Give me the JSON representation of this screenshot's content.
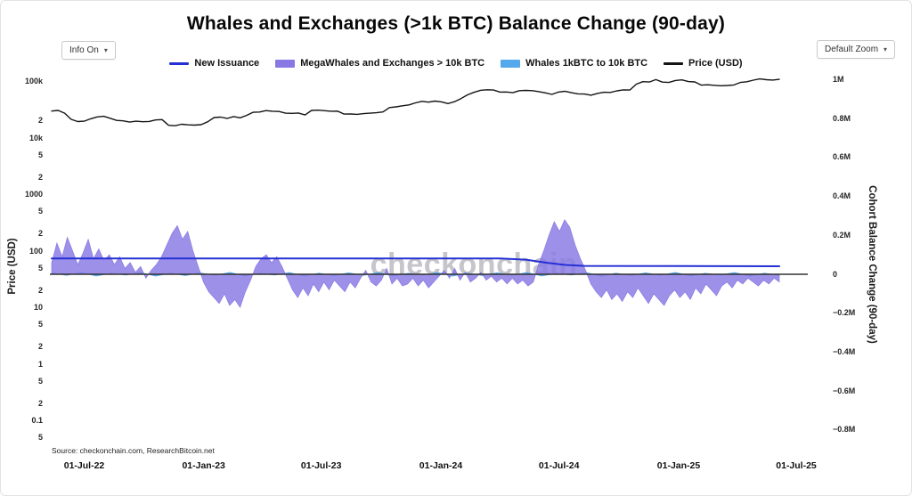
{
  "header": {
    "title": "Whales and Exchanges (>1k BTC) Balance Change (90-day)",
    "info_button": "Info On",
    "zoom_button": "Default Zoom",
    "caret": "▾"
  },
  "watermark": "checkonchain",
  "source_note": "Source: checkonchain.com, ResearchBitcoin.net",
  "legend": [
    {
      "label": "New Issuance",
      "color": "#2530d4",
      "type": "line"
    },
    {
      "label": "MegaWhales and Exchanges > 10k BTC",
      "color": "#8878e4",
      "type": "band"
    },
    {
      "label": "Whales 1kBTC to 10k BTC",
      "color": "#54a8ec",
      "type": "band"
    },
    {
      "label": "Price (USD)",
      "color": "#141414",
      "type": "line"
    }
  ],
  "axes": {
    "left_title": "Price (USD)",
    "right_title": "Cohort Balance Change (90-day)",
    "x_ticks": [
      {
        "label": "01-Jul-22",
        "day": 50
      },
      {
        "label": "01-Jan-23",
        "day": 234
      },
      {
        "label": "01-Jul-23",
        "day": 415
      },
      {
        "label": "01-Jan-24",
        "day": 599
      },
      {
        "label": "01-Jul-24",
        "day": 781
      },
      {
        "label": "01-Jan-25",
        "day": 965
      },
      {
        "label": "01-Jul-25",
        "day": 1146
      }
    ],
    "left_ticks": [
      {
        "label": "100k",
        "value": 100000
      },
      {
        "label": "2",
        "value": 20000
      },
      {
        "label": "10k",
        "value": 10000
      },
      {
        "label": "5",
        "value": 5000
      },
      {
        "label": "2",
        "value": 2000
      },
      {
        "label": "1000",
        "value": 1000
      },
      {
        "label": "5",
        "value": 500
      },
      {
        "label": "2",
        "value": 200
      },
      {
        "label": "100",
        "value": 100
      },
      {
        "label": "5",
        "value": 50
      },
      {
        "label": "2",
        "value": 20
      },
      {
        "label": "10",
        "value": 10
      },
      {
        "label": "5",
        "value": 5
      },
      {
        "label": "2",
        "value": 2
      },
      {
        "label": "1",
        "value": 1
      },
      {
        "label": "5",
        "value": 0.5
      },
      {
        "label": "2",
        "value": 0.2
      },
      {
        "label": "0.1",
        "value": 0.1
      },
      {
        "label": "5",
        "value": 0.05
      }
    ],
    "right_ticks": [
      {
        "label": "1M",
        "value": 1.0
      },
      {
        "label": "0.8M",
        "value": 0.8
      },
      {
        "label": "0.6M",
        "value": 0.6
      },
      {
        "label": "0.4M",
        "value": 0.4
      },
      {
        "label": "0.2M",
        "value": 0.2
      },
      {
        "label": "0",
        "value": 0
      },
      {
        "label": "−0.2M",
        "value": -0.2
      },
      {
        "label": "−0.4M",
        "value": -0.4
      },
      {
        "label": "−0.6M",
        "value": -0.6
      },
      {
        "label": "−0.8M",
        "value": -0.8
      }
    ]
  },
  "chart_data": {
    "type": "line+area",
    "title": "Whales and Exchanges (>1k BTC) Balance Change (90-day)",
    "x_domain_days": [
      0,
      1162
    ],
    "data_span_days": [
      0,
      1120
    ],
    "x_range_dates": [
      "mid-May-2022",
      "early-Jun-2025"
    ],
    "left_axis": {
      "label": "Price (USD)",
      "scale": "log",
      "range": [
        0.04,
        150000
      ]
    },
    "right_axis": {
      "label": "Cohort Balance Change (90-day)",
      "scale": "linear",
      "range_M_BTC": [
        -0.9,
        1.05
      ]
    },
    "series": [
      {
        "id": "whales-1k-10k",
        "name": "Whales 1kBTC to 10k BTC",
        "kind": "area",
        "axis": "right",
        "unit": "M_BTC",
        "color": "#54a8ec",
        "opacity": 0.9,
        "values": [
          0.008,
          -0.006,
          0.01,
          -0.009,
          0.005,
          -0.004,
          0.009,
          -0.01,
          0.006,
          -0.007,
          0.008,
          -0.006,
          0.01,
          -0.009,
          0.005,
          -0.004,
          0.009,
          -0.01,
          0.006,
          -0.007,
          0.008,
          -0.006,
          0.01,
          -0.009,
          0.005,
          -0.004,
          0.009,
          -0.01,
          0.006,
          -0.007,
          0.008,
          -0.006,
          0.01,
          -0.009,
          0.005,
          -0.004,
          0.009,
          -0.01,
          0.006,
          -0.007,
          0.008,
          -0.006,
          0.01,
          -0.009,
          0.005,
          -0.004,
          0.009,
          -0.01,
          0.006,
          -0.007
        ]
      },
      {
        "id": "megawhales-exchanges",
        "name": "MegaWhales and Exchanges > 10k BTC",
        "kind": "area",
        "axis": "right",
        "unit": "M_BTC",
        "color": "#8878e4",
        "opacity": 0.82,
        "values": [
          0.06,
          0.16,
          0.09,
          0.19,
          0.12,
          0.05,
          0.11,
          0.18,
          0.08,
          0.13,
          0.07,
          0.1,
          0.05,
          0.09,
          0.03,
          0.06,
          0.01,
          0.04,
          -0.02,
          0.02,
          0.05,
          0.09,
          0.15,
          0.21,
          0.25,
          0.18,
          0.22,
          0.12,
          0.04,
          -0.04,
          -0.09,
          -0.12,
          -0.15,
          -0.1,
          -0.16,
          -0.13,
          -0.17,
          -0.09,
          -0.03,
          0.04,
          0.08,
          0.1,
          0.06,
          0.09,
          0.04,
          -0.02,
          -0.08,
          -0.12,
          -0.07,
          -0.11,
          -0.05,
          -0.09,
          -0.04,
          -0.08,
          -0.03,
          -0.06,
          -0.09,
          -0.04,
          -0.07,
          -0.02,
          0.02,
          -0.04,
          -0.06,
          -0.03,
          0.03,
          -0.05,
          -0.02,
          -0.06,
          -0.05,
          -0.02,
          -0.06,
          -0.03,
          -0.07,
          -0.04,
          -0.01,
          0.02,
          -0.02,
          0.03,
          -0.03,
          0.01,
          -0.04,
          -0.02,
          0.01,
          -0.03,
          -0.01,
          -0.04,
          -0.02,
          -0.05,
          -0.02,
          -0.05,
          -0.03,
          -0.06,
          -0.04,
          0.05,
          0.12,
          0.2,
          0.27,
          0.22,
          0.28,
          0.24,
          0.15,
          0.08,
          0.02,
          -0.05,
          -0.09,
          -0.12,
          -0.08,
          -0.13,
          -0.1,
          -0.14,
          -0.09,
          -0.12,
          -0.07,
          -0.11,
          -0.15,
          -0.1,
          -0.13,
          -0.16,
          -0.11,
          -0.08,
          -0.12,
          -0.09,
          -0.13,
          -0.07,
          -0.1,
          -0.05,
          -0.08,
          -0.11,
          -0.06,
          -0.04,
          -0.07,
          -0.03,
          -0.05,
          -0.02,
          -0.04,
          -0.06,
          -0.03,
          -0.05,
          -0.02,
          -0.04
        ]
      },
      {
        "id": "new-issuance",
        "name": "New Issuance",
        "kind": "line",
        "axis": "right",
        "unit": "M_BTC",
        "color": "#2530d4",
        "width": 2,
        "points": [
          [
            0,
            0.081
          ],
          [
            690,
            0.081
          ],
          [
            730,
            0.075
          ],
          [
            760,
            0.06
          ],
          [
            790,
            0.048
          ],
          [
            820,
            0.043
          ],
          [
            1120,
            0.041
          ]
        ]
      },
      {
        "id": "price",
        "name": "Price (USD)",
        "kind": "line",
        "axis": "left-log",
        "unit": "kUSD",
        "color": "#141414",
        "width": 1.4,
        "values": [
          29.5,
          30.2,
          27.0,
          21.0,
          19.2,
          19.5,
          21.5,
          23.2,
          23.8,
          22.0,
          20.1,
          19.8,
          18.8,
          19.5,
          19.1,
          19.3,
          20.5,
          20.8,
          16.5,
          16.2,
          17.2,
          16.8,
          16.6,
          16.9,
          19.0,
          22.6,
          23.0,
          21.8,
          23.5,
          22.4,
          24.7,
          28.0,
          28.3,
          30.0,
          29.2,
          28.9,
          27.0,
          26.8,
          27.2,
          25.1,
          30.2,
          30.6,
          29.9,
          29.2,
          29.4,
          26.0,
          26.1,
          25.8,
          26.5,
          27.0,
          27.5,
          28.4,
          34.0,
          35.0,
          36.5,
          37.8,
          41.2,
          43.7,
          42.3,
          44.2,
          42.8,
          40.0,
          43.1,
          49.0,
          57.0,
          63.0,
          68.5,
          70.0,
          69.4,
          63.8,
          64.1,
          62.3,
          67.5,
          68.4,
          67.7,
          65.0,
          61.8,
          58.0,
          63.8,
          66.0,
          62.1,
          59.4,
          59.0,
          56.2,
          60.5,
          63.3,
          62.8,
          67.0,
          69.9,
          69.4,
          88.0,
          97.5,
          96.0,
          106.1,
          95.8,
          94.4,
          102.3,
          104.8,
          97.7,
          96.6,
          84.7,
          86.0,
          83.9,
          82.5,
          83.5,
          85.2,
          94.2,
          97.0,
          103.7,
          108.9,
          105.6,
          104.0,
          107.3
        ]
      }
    ]
  }
}
